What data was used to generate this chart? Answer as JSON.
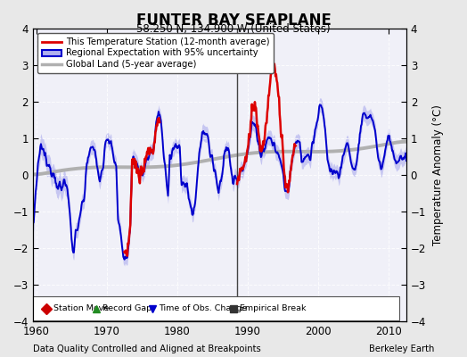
{
  "title": "FUNTER BAY SEAPLANE",
  "subtitle": "58.250 N, 134.900 W (United States)",
  "ylabel": "Temperature Anomaly (°C)",
  "ylim": [
    -4,
    4
  ],
  "xlim": [
    1959.5,
    2012.5
  ],
  "xticks": [
    1960,
    1970,
    1980,
    1990,
    2000,
    2010
  ],
  "yticks": [
    -4,
    -3,
    -2,
    -1,
    0,
    1,
    2,
    3,
    4
  ],
  "footer_left": "Data Quality Controlled and Aligned at Breakpoints",
  "footer_right": "Berkeley Earth",
  "bg_color": "#e8e8e8",
  "plot_bg_color": "#f0f0f8",
  "regional_color": "#0000cc",
  "regional_fill_color": "#b0b0ee",
  "station_color": "#dd0000",
  "global_color": "#b0b0b0",
  "vline_x": 1988.5,
  "vline_color": "#444444",
  "green_triangle_x": 1988.5,
  "green_triangle_y": -3.5,
  "legend_entries": [
    {
      "label": "This Temperature Station (12-month average)",
      "color": "#dd0000"
    },
    {
      "label": "Regional Expectation with 95% uncertainty",
      "color": "#0000cc"
    },
    {
      "label": "Global Land (5-year average)",
      "color": "#b0b0b0"
    }
  ],
  "bottom_legend": [
    {
      "marker": "D",
      "color": "#cc0000",
      "label": "Station Move"
    },
    {
      "marker": "^",
      "color": "#228B22",
      "label": "Record Gap"
    },
    {
      "marker": "v",
      "color": "#0000cc",
      "label": "Time of Obs. Change"
    },
    {
      "marker": "s",
      "color": "#333333",
      "label": "Empirical Break"
    }
  ]
}
